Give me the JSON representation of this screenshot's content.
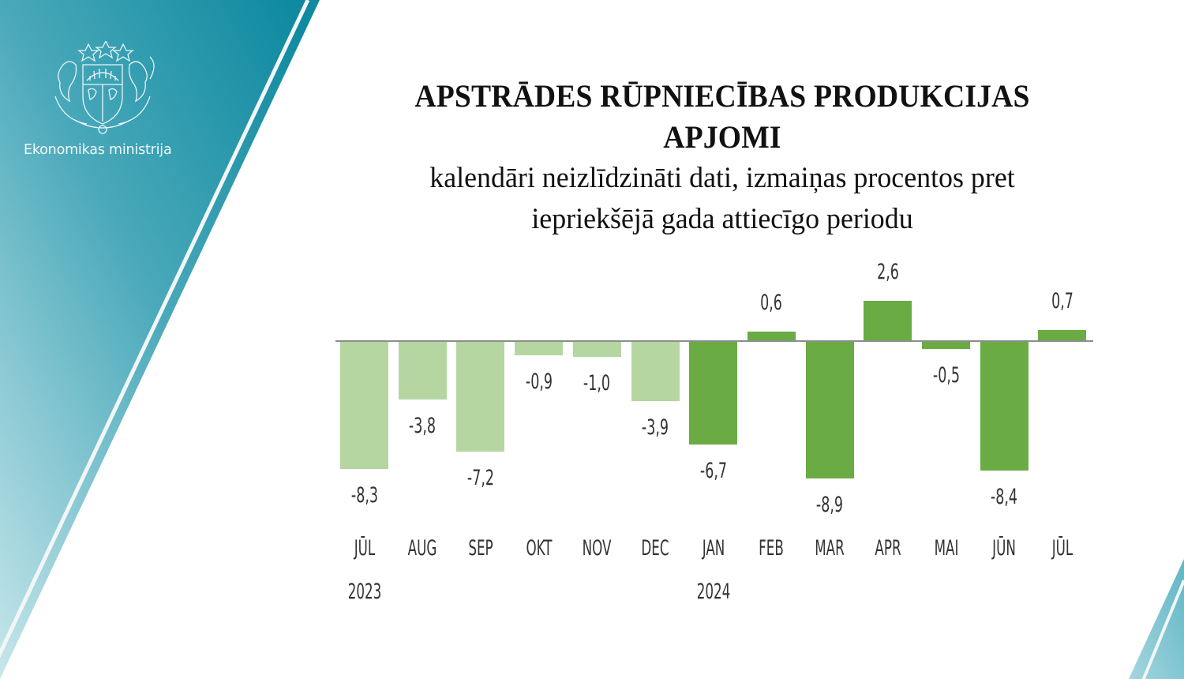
{
  "branding": {
    "ministry_name": "Ekonomikas ministrija",
    "emblem_icon": "latvia-coat-of-arms-icon",
    "panel_color_top": "#138a9f",
    "panel_color_bottom": "#b9e0e6"
  },
  "title": {
    "line1": "APSTRĀDES RŪPNIECĪBAS PRODUKCIJAS",
    "line2": "APJOMI",
    "subtitle_line1": "kalendāri neizlīdzināti dati, izmaiņas procentos pret",
    "subtitle_line2": "iepriekšējā gada attiecīgo periodu"
  },
  "colors": {
    "bar_2023": "#b5d6a0",
    "bar_2024": "#6aab44",
    "axis": "#8a8f8c"
  },
  "chart_data": {
    "type": "bar",
    "title": "APSTRĀDES RŪPNIECĪBAS PRODUKCIJAS APJOMI",
    "subtitle": "kalendāri neizlīdzināti dati, izmaiņas procentos pret iepriekšējā gada attiecīgo periodu",
    "xlabel": "",
    "ylabel": "",
    "categories": [
      "JŪL",
      "AUG",
      "SEP",
      "OKT",
      "NOV",
      "DEC",
      "JAN",
      "FEB",
      "MAR",
      "APR",
      "MAI",
      "JŪN",
      "JŪL"
    ],
    "year_labels": [
      {
        "index": 0,
        "label": "2023"
      },
      {
        "index": 6,
        "label": "2024"
      }
    ],
    "values": [
      -8.3,
      -3.8,
      -7.2,
      -0.9,
      -1.0,
      -3.9,
      -6.7,
      0.6,
      -8.9,
      2.6,
      -0.5,
      -8.4,
      0.7
    ],
    "value_labels": [
      "-8,3",
      "-3,8",
      "-7,2",
      "-0,9",
      "-1,0",
      "-3,9",
      "-6,7",
      "0,6",
      "-8,9",
      "2,6",
      "-0,5",
      "-8,4",
      "0,7"
    ],
    "series_year": [
      "2023",
      "2023",
      "2023",
      "2023",
      "2023",
      "2023",
      "2024",
      "2024",
      "2024",
      "2024",
      "2024",
      "2024",
      "2024"
    ],
    "ylim": [
      -9,
      3
    ],
    "grid": false,
    "legend": "none",
    "axes_visible": false,
    "zero_line": true
  }
}
